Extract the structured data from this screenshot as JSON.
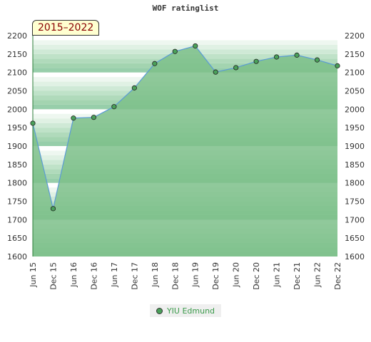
{
  "chart_data": {
    "type": "area",
    "title": "WOF ratinglist",
    "badge": "2015–2022",
    "categories": [
      "Jun 15",
      "Dec 15",
      "Jun 16",
      "Dec 16",
      "Jun 17",
      "Dec 17",
      "Jun 18",
      "Dec 18",
      "Jun 19",
      "Dec 19",
      "Jun 20",
      "Dec 20",
      "Jun 21",
      "Dec 21",
      "Jun 22",
      "Dec 22"
    ],
    "series": [
      {
        "name": "YIU Edmund",
        "values": [
          1962,
          1730,
          1976,
          1978,
          2007,
          2058,
          2124,
          2157,
          2172,
          2101,
          2113,
          2130,
          2142,
          2147,
          2134,
          2118
        ]
      }
    ],
    "ylim": [
      1600,
      2200
    ],
    "yticks": [
      1600,
      1650,
      1700,
      1750,
      1800,
      1850,
      1900,
      1950,
      2000,
      2050,
      2100,
      2150,
      2200
    ],
    "legend_position": "bottom-center",
    "colors": {
      "area_fill": "#7cc08a",
      "line": "#5b9bd5",
      "marker": "#4aa05a",
      "badge_text": "#8a0000"
    }
  }
}
